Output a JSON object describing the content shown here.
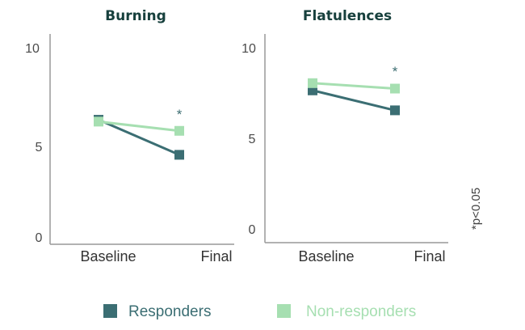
{
  "colors": {
    "responders": "#3b6e73",
    "non_responders": "#a6dfb1",
    "axis": "#999999"
  },
  "note": "*p<0.05",
  "legend": {
    "responders_label": "Responders",
    "non_responders_label": "Non-responders"
  },
  "chart_data": [
    {
      "type": "line",
      "title": "Burning",
      "categories": [
        "Baseline",
        "Final"
      ],
      "ylim": [
        0,
        10
      ],
      "yticks": [
        "0",
        "5",
        "10"
      ],
      "series": [
        {
          "name": "Responders",
          "values": [
            6.4,
            4.5
          ]
        },
        {
          "name": "Non-responders",
          "values": [
            6.3,
            5.8
          ]
        }
      ],
      "annotations": [
        {
          "text": "*",
          "category": "Final"
        }
      ],
      "grid": false
    },
    {
      "type": "line",
      "title": "Flatulences",
      "categories": [
        "Baseline",
        "Final"
      ],
      "ylim": [
        0,
        10
      ],
      "yticks": [
        "0",
        "5",
        "10"
      ],
      "series": [
        {
          "name": "Responders",
          "values": [
            7.6,
            6.5
          ]
        },
        {
          "name": "Non-responders",
          "values": [
            8.0,
            7.7
          ]
        }
      ],
      "annotations": [
        {
          "text": "*",
          "category": "Final"
        }
      ],
      "grid": false
    }
  ]
}
